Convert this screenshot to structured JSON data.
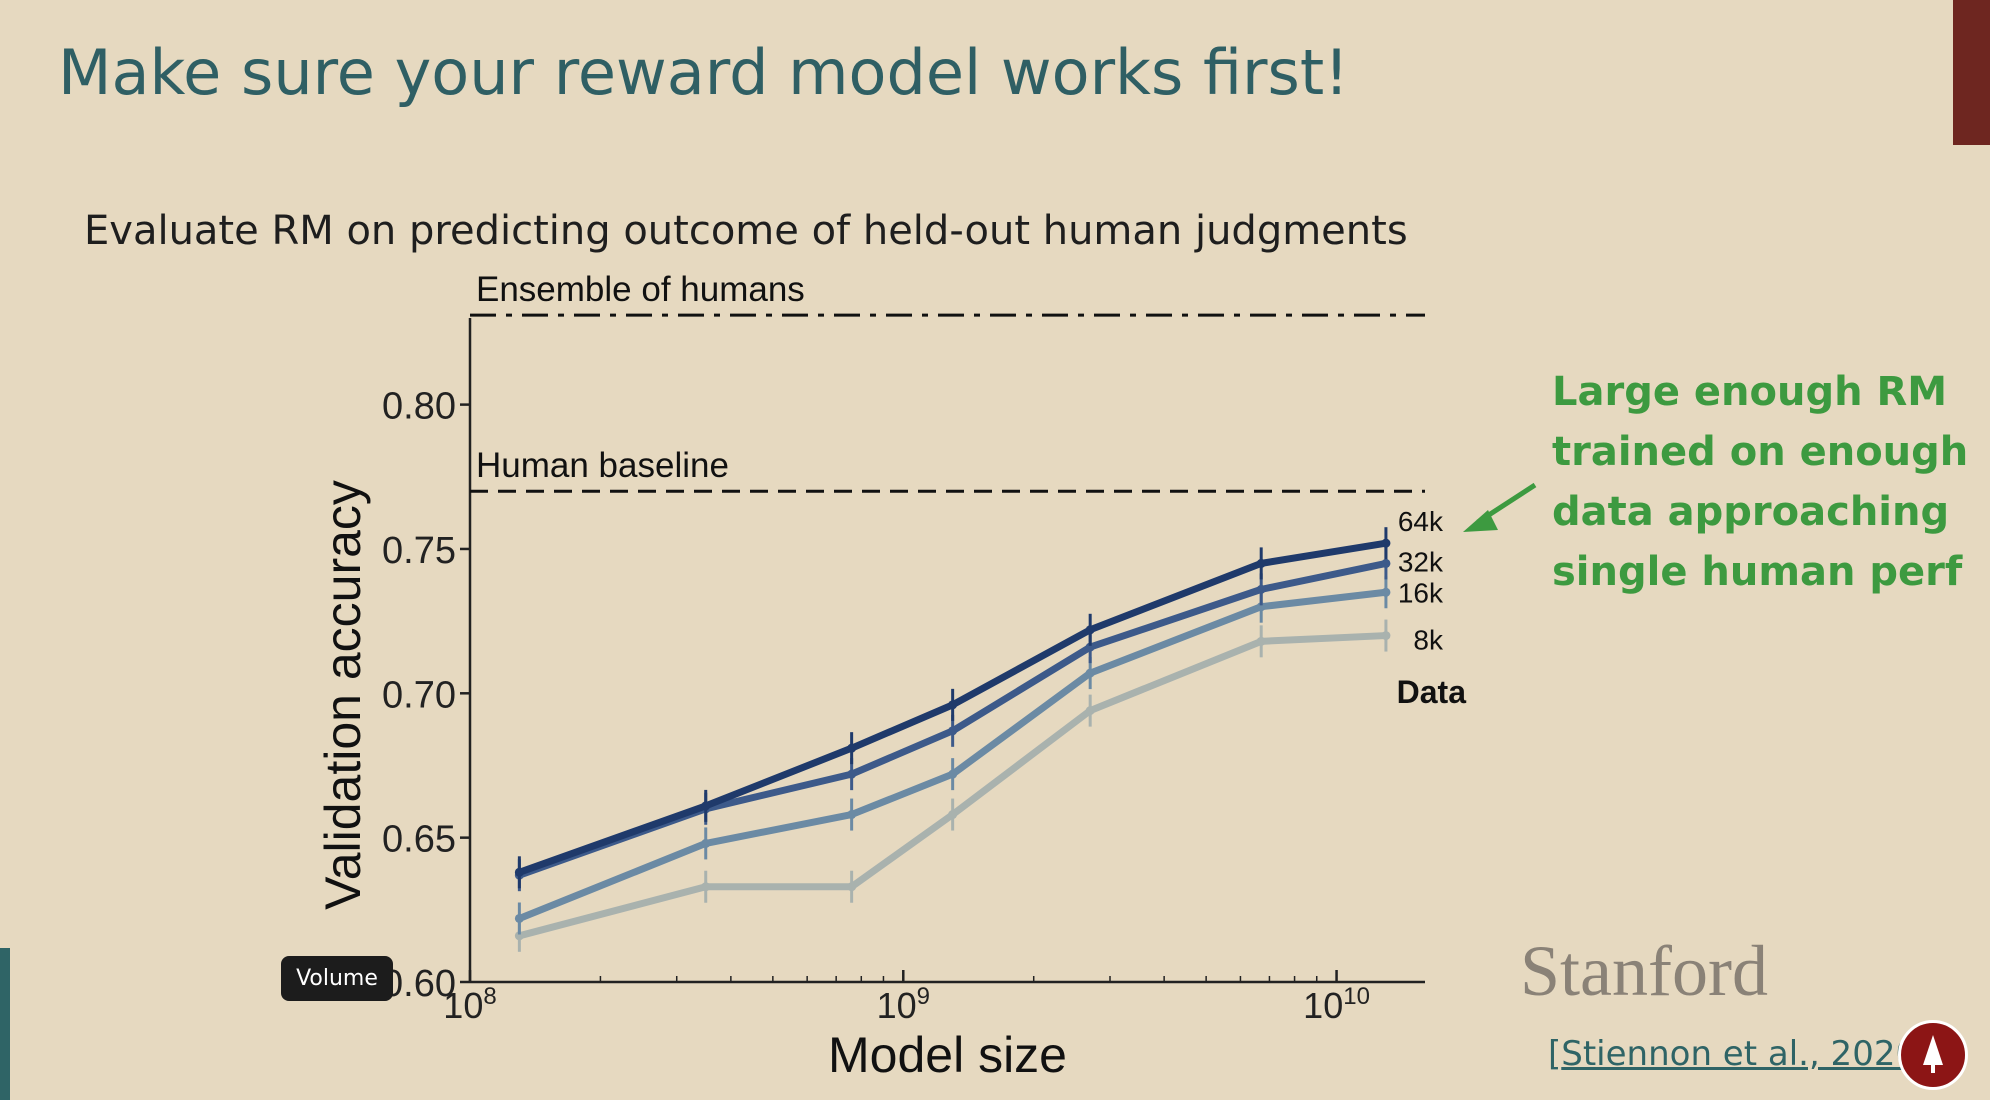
{
  "slide": {
    "title": "Make sure your reward model works first!",
    "subtitle": "Evaluate RM on predicting outcome of held-out human judgments",
    "callout_lines": [
      "Large enough RM",
      "trained on enough",
      "data approaching",
      "single human perf"
    ],
    "stanford": "Stanford",
    "citation_bracket": "[",
    "citation": "Stiennon et al., 2020]"
  },
  "overlay": {
    "tooltip": "Volume"
  },
  "colors": {
    "background": "#e6d9c0",
    "title": "#2f5f64",
    "callout": "#3d9a40",
    "series": [
      "#1f3a6b",
      "#3d5a8a",
      "#6b8aa4",
      "#a9b2ae"
    ]
  },
  "chart_data": {
    "type": "line",
    "xlabel": "Model size",
    "ylabel": "Validation accuracy",
    "x_scale": "log",
    "xlim": [
      100000000,
      16000000000
    ],
    "ylim": [
      0.6,
      0.83
    ],
    "x_ticks": [
      {
        "value": 100000000,
        "base": "10",
        "exp": "8"
      },
      {
        "value": 1000000000,
        "base": "10",
        "exp": "9"
      },
      {
        "value": 10000000000,
        "base": "10",
        "exp": "10"
      }
    ],
    "y_ticks": [
      0.6,
      0.65,
      0.7,
      0.75,
      0.8
    ],
    "y_tick_labels": [
      "0.60",
      "0.65",
      "0.70",
      "0.75",
      "0.80"
    ],
    "x": [
      130000000,
      350000000,
      760000000,
      1300000000,
      2700000000,
      6700000000,
      13000000000
    ],
    "series": [
      {
        "name": "64k",
        "values": [
          0.638,
          0.661,
          0.681,
          0.696,
          0.722,
          0.745,
          0.752
        ]
      },
      {
        "name": "32k",
        "values": [
          0.637,
          0.66,
          0.672,
          0.687,
          0.716,
          0.736,
          0.745
        ]
      },
      {
        "name": "16k",
        "values": [
          0.622,
          0.648,
          0.658,
          0.672,
          0.707,
          0.73,
          0.735
        ]
      },
      {
        "name": "8k",
        "values": [
          0.616,
          0.633,
          0.633,
          0.658,
          0.694,
          0.718,
          0.72
        ]
      }
    ],
    "legend_title": "Data",
    "reference_lines": [
      {
        "label": "Ensemble of humans",
        "y": 0.831,
        "style": "dash-dot"
      },
      {
        "label": "Human baseline",
        "y": 0.77,
        "style": "dashed"
      }
    ],
    "grid": false,
    "legend": "right, at line ends"
  }
}
